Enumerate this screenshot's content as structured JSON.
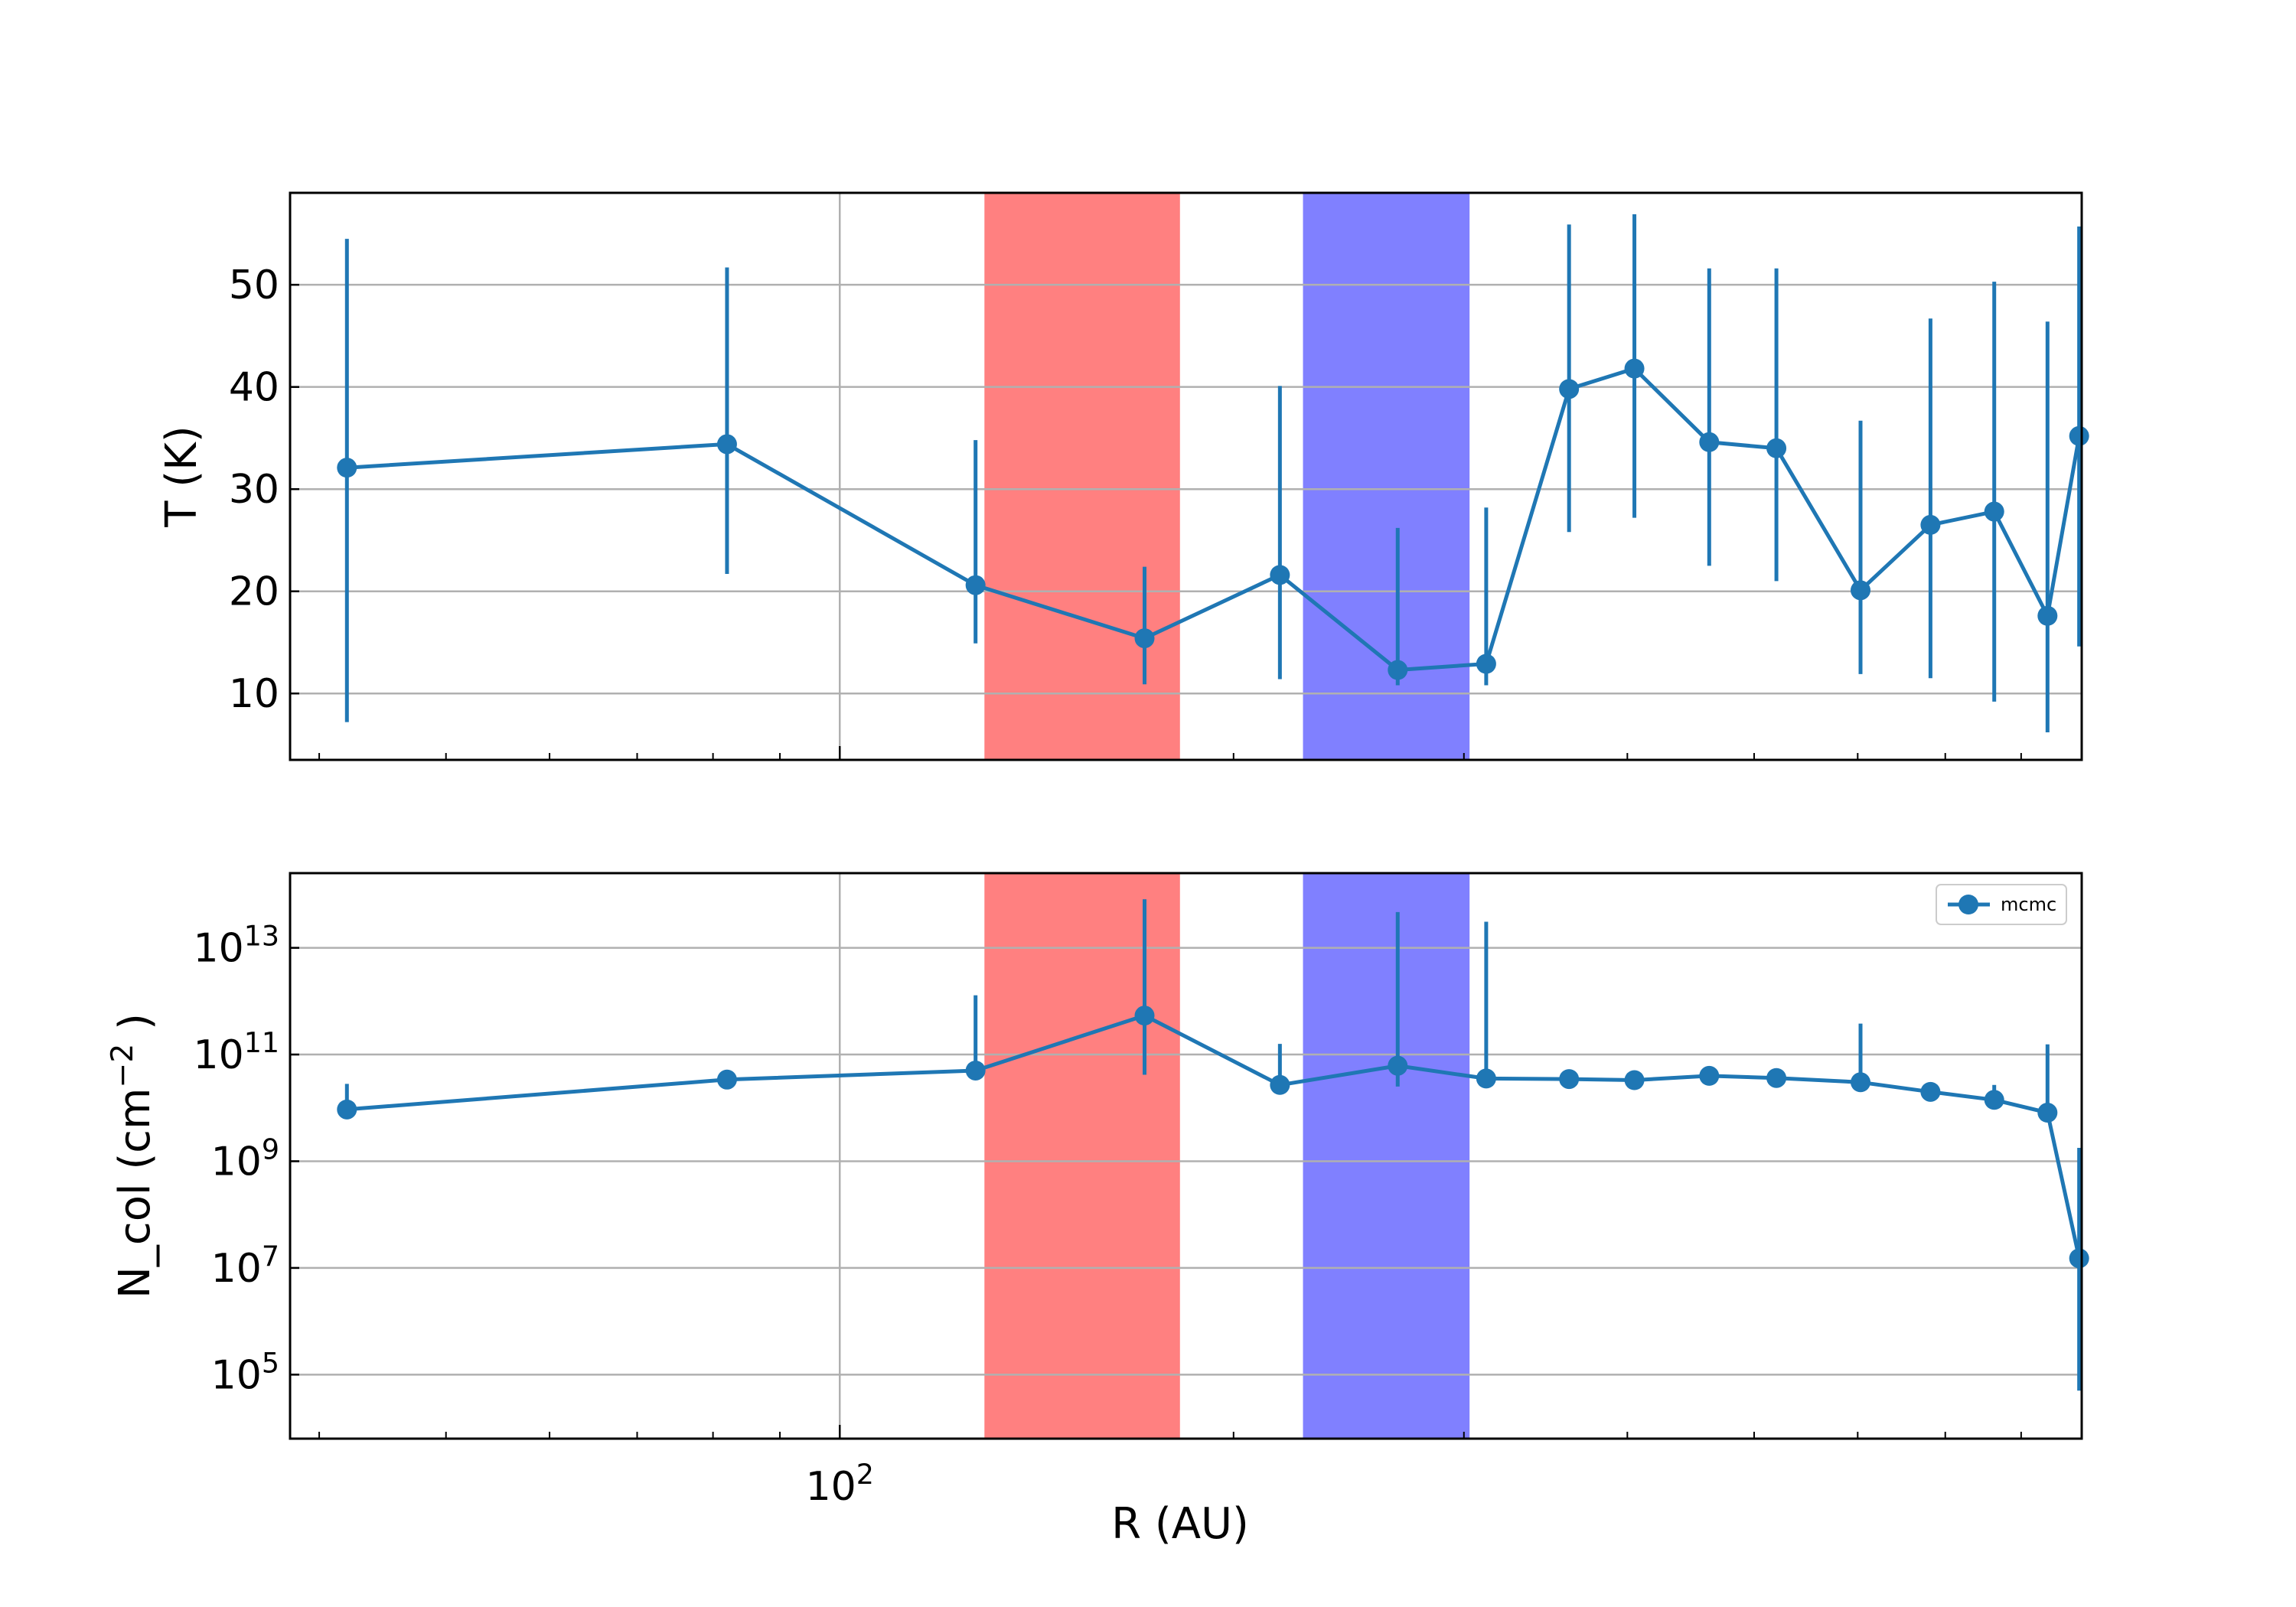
{
  "chart_data": [
    {
      "type": "line",
      "panel": "top",
      "ylabel": "T (K)",
      "xscale": "log",
      "xlim": [
        38,
        890
      ],
      "ylim": [
        3.5,
        59
      ],
      "yticks": [
        10,
        20,
        30,
        40,
        50
      ],
      "grid": true,
      "color": "#1f77b4",
      "shaded_regions": [
        {
          "x": [
            129,
            182
          ],
          "color": "#ff8080"
        },
        {
          "x": [
            226,
            303
          ],
          "color": "#8080ff"
        }
      ],
      "series": [
        {
          "x": [
            42,
            82,
            127,
            171,
            217,
            267,
            312,
            361,
            405,
            462,
            520,
            603,
            682,
            763,
            838,
            886
          ],
          "y": [
            32.1,
            34.4,
            20.6,
            15.4,
            21.6,
            12.3,
            12.9,
            39.8,
            41.8,
            34.6,
            34.0,
            20.1,
            26.5,
            27.8,
            17.6,
            35.2
          ],
          "err_low": [
            7.2,
            21.7,
            14.9,
            10.9,
            11.4,
            10.8,
            10.8,
            25.8,
            27.2,
            22.5,
            21.0,
            11.9,
            11.5,
            9.2,
            6.2,
            14.6
          ],
          "err_high": [
            54.5,
            51.7,
            34.8,
            22.4,
            40.1,
            26.2,
            28.2,
            55.9,
            56.9,
            51.6,
            51.6,
            36.7,
            46.7,
            50.3,
            46.4,
            55.7
          ]
        }
      ]
    },
    {
      "type": "line",
      "panel": "bottom",
      "xlabel": "R (AU)",
      "ylabel_main": "N_col (cm",
      "ylabel_exp": "−2",
      "ylabel_tail": " )",
      "xscale": "log",
      "yscale": "log",
      "xlim": [
        38,
        890
      ],
      "ylog_lim": [
        3.8,
        14.4
      ],
      "yticks": [
        {
          "base": "10",
          "exp": "5"
        },
        {
          "base": "10",
          "exp": "7"
        },
        {
          "base": "10",
          "exp": "9"
        },
        {
          "base": "10",
          "exp": "11"
        },
        {
          "base": "10",
          "exp": "13"
        }
      ],
      "xticks": [
        {
          "value": 100,
          "base": "10",
          "exp": "2"
        }
      ],
      "grid": true,
      "color": "#1f77b4",
      "legend": {
        "position": "top-right",
        "label": "mcmc"
      },
      "shaded_regions": [
        {
          "x": [
            129,
            182
          ],
          "color": "#ff8080"
        },
        {
          "x": [
            226,
            303
          ],
          "color": "#8080ff"
        }
      ],
      "series": [
        {
          "name": "mcmc",
          "x": [
            42,
            82,
            127,
            171,
            217,
            267,
            312,
            361,
            405,
            462,
            520,
            603,
            682,
            763,
            838,
            886
          ],
          "log10_y": [
            9.97,
            10.53,
            10.7,
            11.73,
            10.43,
            10.79,
            10.55,
            10.54,
            10.52,
            10.6,
            10.56,
            10.48,
            10.3,
            10.15,
            9.91,
            7.18
          ],
          "log10_err_low": [
            9.97,
            10.53,
            10.7,
            10.62,
            10.43,
            10.4,
            10.55,
            10.54,
            10.52,
            10.6,
            10.56,
            10.48,
            10.25,
            10.05,
            9.91,
            4.7
          ],
          "log10_err_high": [
            10.45,
            10.53,
            12.11,
            13.91,
            11.2,
            13.67,
            13.49,
            10.54,
            10.52,
            10.6,
            10.56,
            11.58,
            10.42,
            10.43,
            11.19,
            9.25
          ]
        }
      ]
    }
  ]
}
